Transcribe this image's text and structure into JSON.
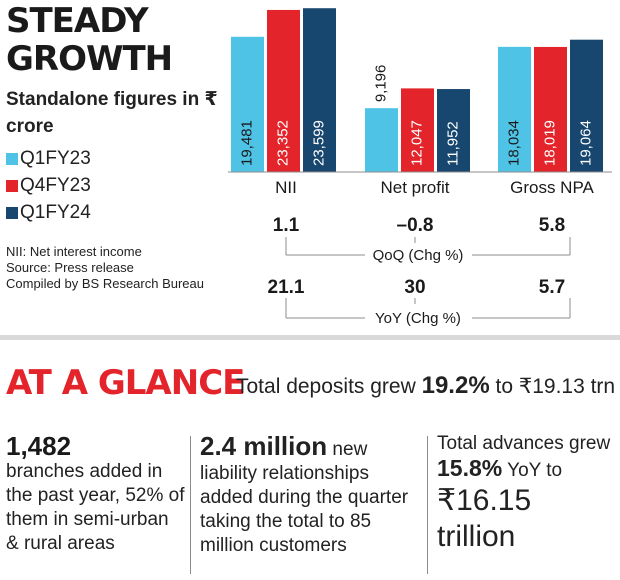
{
  "header": {
    "title_line1": "STEADY",
    "title_line2": "GROWTH",
    "subtitle": "Standalone figures in ₹ crore"
  },
  "legend": [
    {
      "label": "Q1FY23",
      "color": "#4fc3e6"
    },
    {
      "label": "Q4FY23",
      "color": "#e3242b"
    },
    {
      "label": "Q1FY24",
      "color": "#17466e"
    }
  ],
  "notes": {
    "nii": "NII: Net interest income",
    "source": "Source: Press release",
    "compiled": "Compiled by BS Research Bureau"
  },
  "chart_data": {
    "type": "bar",
    "title": "STEADY GROWTH",
    "subtitle": "Standalone figures in ₹ crore",
    "categories": [
      "NII",
      "Net profit",
      "Gross NPA"
    ],
    "series": [
      {
        "name": "Q1FY23",
        "color": "#4fc3e6",
        "values": [
          19481,
          9196,
          18034
        ],
        "labels": [
          "19,481",
          "9,196",
          "18,034"
        ]
      },
      {
        "name": "Q4FY23",
        "color": "#e3242b",
        "values": [
          23352,
          12047,
          18019
        ],
        "labels": [
          "23,352",
          "12,047",
          "18,019"
        ]
      },
      {
        "name": "Q1FY24",
        "color": "#17466e",
        "values": [
          23599,
          11952,
          19064
        ],
        "labels": [
          "23,599",
          "11,952",
          "19,064"
        ]
      }
    ],
    "qoq": {
      "label": "QoQ (Chg %)",
      "values": [
        "1.1",
        "–0.8",
        "5.8"
      ]
    },
    "yoy": {
      "label": "YoY (Chg %)",
      "values": [
        "21.1",
        "30",
        "5.7"
      ]
    }
  },
  "glance": {
    "title": "AT A GLANCE",
    "deposits_pre": "Total deposits grew ",
    "deposits_pct": "19.2%",
    "deposits_post": " to ₹19.13 trn",
    "col1_big": "1,482",
    "col1_text": "branches added in the past year, 52% of them in semi-urban & rural areas",
    "col2_big": "2.4 million",
    "col2_text": " new liability relationships added during the quarter taking the total to 85 million customers",
    "col3_pre": "Total advances grew ",
    "col3_pct": "15.8%",
    "col3_post": " YoY to",
    "col3_big": "₹16.15 trillion"
  }
}
